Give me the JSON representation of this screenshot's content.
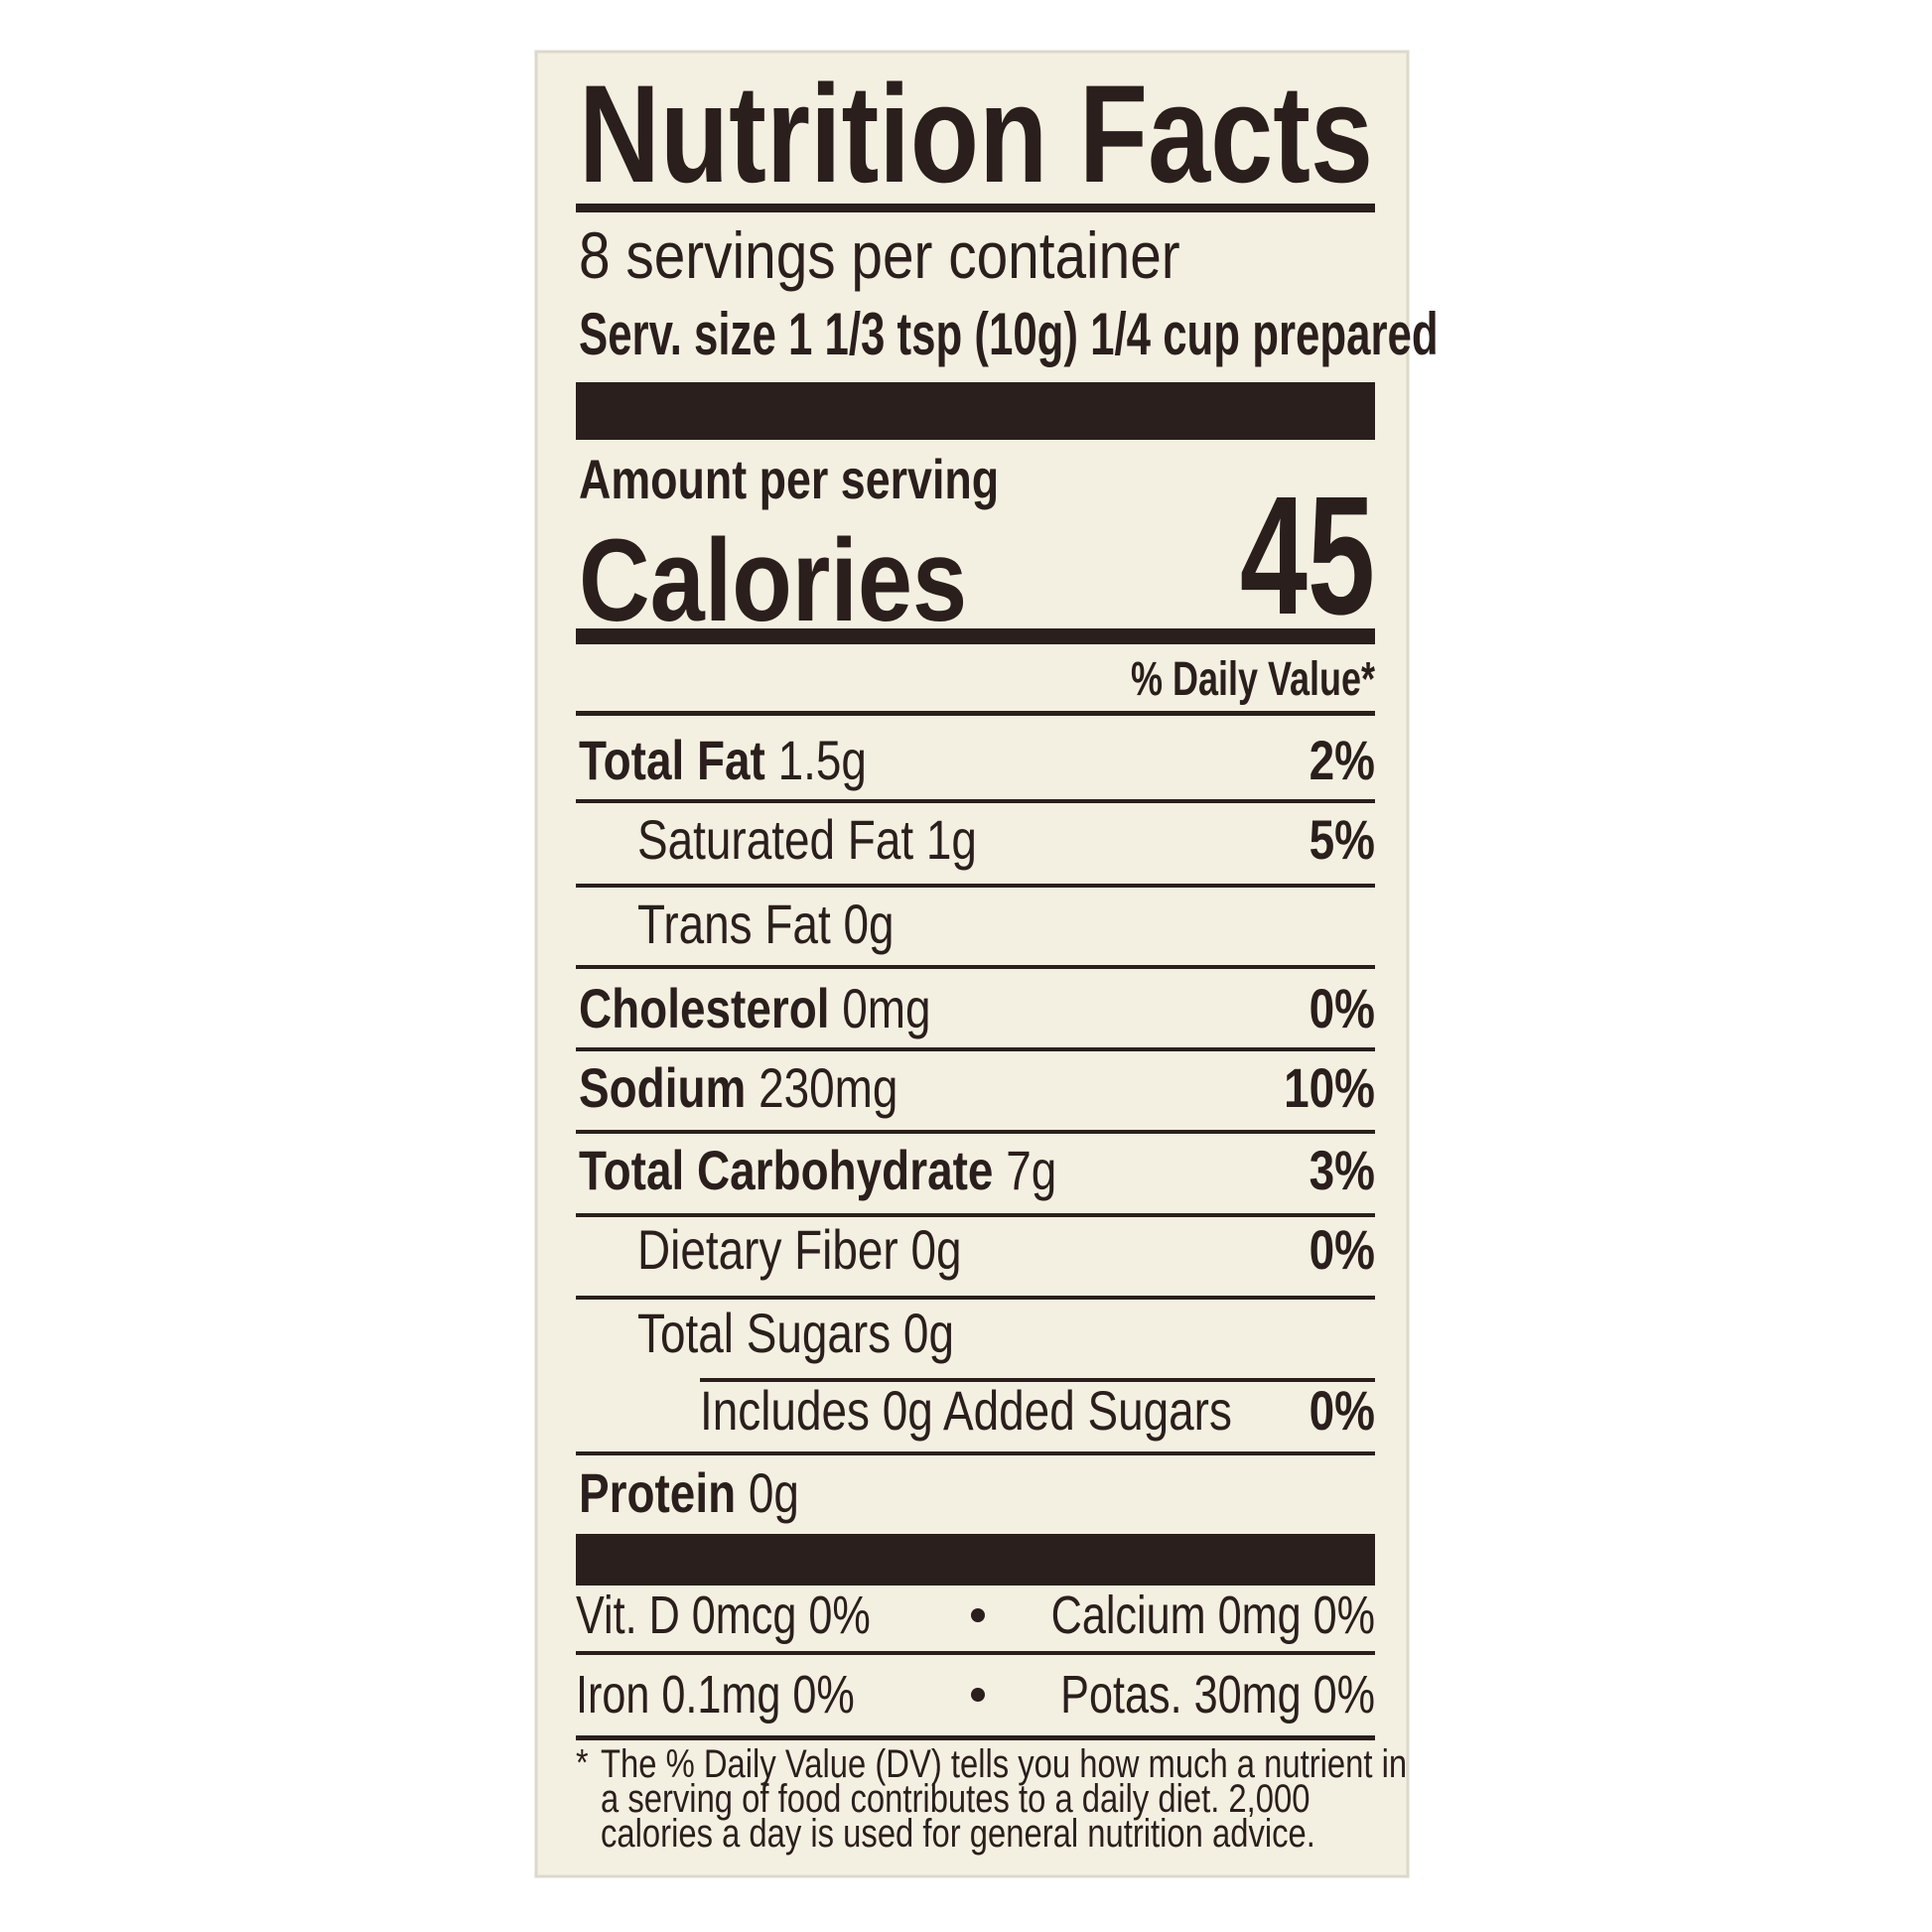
{
  "title": "Nutrition Facts",
  "servings": "8 servings per container",
  "serving_size": "Serv. size 1 1/3 tsp (10g) 1/4 cup prepared",
  "amount_per_serving": "Amount per serving",
  "calories_label": "Calories",
  "calories": 45,
  "dv_header": "% Daily Value*",
  "nutrients": [
    {
      "name": "Total Fat",
      "amount": "1.5g",
      "dv": "2%"
    },
    {
      "name": "Saturated Fat",
      "amount": "1g",
      "dv": "5%"
    },
    {
      "name": "Trans Fat",
      "amount": "0g"
    },
    {
      "name": "Cholesterol",
      "amount": "0mg",
      "dv": "0%"
    },
    {
      "name": "Sodium",
      "amount": "230mg",
      "dv": "10%"
    },
    {
      "name": "Total Carbohydrate",
      "amount": "7g",
      "dv": "3%"
    },
    {
      "name": "Dietary Fiber",
      "amount": "0g",
      "dv": "0%"
    },
    {
      "name": "Total Sugars",
      "amount": "0g"
    },
    {
      "name": "Includes 0g Added Sugars",
      "dv": "0%"
    },
    {
      "name": "Protein",
      "amount": "0g"
    }
  ],
  "vitamins": [
    [
      "Vit. D 0mcg 0%",
      "Calcium 0mg 0%"
    ],
    [
      "Iron 0.1mg 0%",
      "Potas. 30mg 0%"
    ]
  ],
  "footnote_mark": "*",
  "footnote": [
    "The % Daily Value (DV) tells you how much a nutrient in",
    "a serving of food contributes to a daily diet. 2,000",
    "calories a day is used for general nutrition advice."
  ]
}
